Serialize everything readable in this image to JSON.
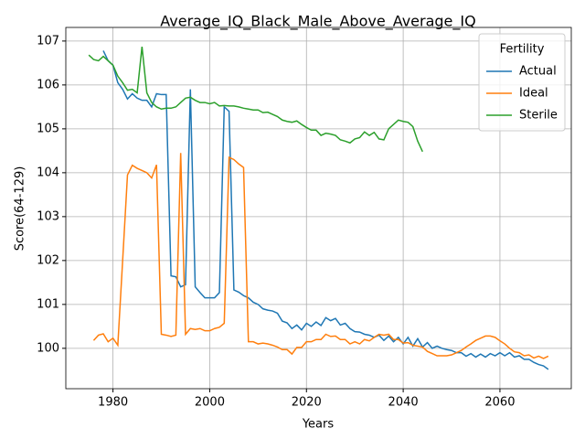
{
  "chart_data": {
    "type": "line",
    "title": "Average_IQ_Black_Male_Above_Average_IQ",
    "x_label": "Years",
    "y_label": "Score(64-129)",
    "x": [
      1975,
      1976,
      1977,
      1978,
      1979,
      1980,
      1981,
      1982,
      1983,
      1984,
      1985,
      1986,
      1987,
      1988,
      1989,
      1990,
      1991,
      1992,
      1993,
      1994,
      1995,
      1996,
      1997,
      1998,
      1999,
      2000,
      2001,
      2002,
      2003,
      2004,
      2005,
      2006,
      2007,
      2008,
      2009,
      2010,
      2011,
      2012,
      2013,
      2014,
      2015,
      2016,
      2017,
      2018,
      2019,
      2020,
      2021,
      2022,
      2023,
      2024,
      2025,
      2026,
      2027,
      2028,
      2029,
      2030,
      2031,
      2032,
      2033,
      2034,
      2035,
      2036,
      2037,
      2038,
      2039,
      2040,
      2041,
      2042,
      2043,
      2044,
      2045,
      2046,
      2047,
      2048,
      2049,
      2050,
      2051,
      2052,
      2053,
      2054,
      2055,
      2056,
      2057,
      2058,
      2059,
      2060,
      2061,
      2062,
      2063,
      2064,
      2065,
      2066,
      2067,
      2068,
      2069,
      2070
    ],
    "series": [
      {
        "name": "Actual",
        "color": "#1f77b4",
        "values": [
          null,
          null,
          null,
          106.78,
          106.55,
          106.45,
          106.05,
          105.9,
          105.68,
          105.8,
          105.7,
          105.65,
          105.65,
          105.5,
          105.8,
          105.78,
          105.78,
          101.65,
          101.63,
          101.4,
          101.45,
          105.9,
          101.4,
          101.27,
          101.15,
          101.15,
          101.15,
          101.27,
          105.5,
          105.4,
          101.33,
          101.28,
          101.2,
          101.15,
          101.05,
          101.0,
          100.9,
          100.87,
          100.85,
          100.8,
          100.62,
          100.58,
          100.45,
          100.53,
          100.42,
          100.57,
          100.5,
          100.6,
          100.52,
          100.7,
          100.63,
          100.68,
          100.53,
          100.57,
          100.45,
          100.38,
          100.37,
          100.32,
          100.3,
          100.25,
          100.3,
          100.18,
          100.28,
          100.15,
          100.25,
          100.1,
          100.25,
          100.05,
          100.22,
          100.03,
          100.13,
          100.0,
          100.05,
          100.0,
          99.97,
          99.95,
          99.9,
          99.9,
          99.82,
          99.88,
          99.8,
          99.87,
          99.8,
          99.88,
          99.83,
          99.9,
          99.83,
          99.9,
          99.8,
          99.83,
          99.75,
          99.75,
          99.68,
          99.63,
          99.6,
          99.52
        ]
      },
      {
        "name": "Ideal",
        "color": "#ff7f0e",
        "values": [
          null,
          100.18,
          100.3,
          100.33,
          100.15,
          100.23,
          100.07,
          102.0,
          103.95,
          104.17,
          104.1,
          104.05,
          104.0,
          103.88,
          104.18,
          100.32,
          100.3,
          100.27,
          100.3,
          104.45,
          100.32,
          100.45,
          100.43,
          100.45,
          100.4,
          100.4,
          100.45,
          100.48,
          100.57,
          104.35,
          104.3,
          104.2,
          104.12,
          100.15,
          100.15,
          100.1,
          100.12,
          100.1,
          100.07,
          100.03,
          99.97,
          99.97,
          99.87,
          100.02,
          100.02,
          100.15,
          100.15,
          100.2,
          100.2,
          100.32,
          100.27,
          100.28,
          100.2,
          100.2,
          100.1,
          100.15,
          100.1,
          100.2,
          100.17,
          100.25,
          100.32,
          100.3,
          100.32,
          100.2,
          100.2,
          100.12,
          100.13,
          100.07,
          100.05,
          100.03,
          99.93,
          99.88,
          99.83,
          99.83,
          99.83,
          99.85,
          99.9,
          99.95,
          100.03,
          100.1,
          100.18,
          100.23,
          100.28,
          100.28,
          100.25,
          100.17,
          100.1,
          100.0,
          99.92,
          99.9,
          99.83,
          99.85,
          99.78,
          99.82,
          99.77,
          99.82
        ]
      },
      {
        "name": "Sterile",
        "color": "#2ca02c",
        "values": [
          106.68,
          106.58,
          106.55,
          106.65,
          106.55,
          106.45,
          106.2,
          106.05,
          105.88,
          105.9,
          105.82,
          106.87,
          105.82,
          105.6,
          105.5,
          105.45,
          105.47,
          105.47,
          105.5,
          105.6,
          105.7,
          105.72,
          105.65,
          105.6,
          105.6,
          105.57,
          105.6,
          105.52,
          105.53,
          105.52,
          105.52,
          105.5,
          105.47,
          105.45,
          105.43,
          105.43,
          105.37,
          105.38,
          105.33,
          105.28,
          105.2,
          105.17,
          105.15,
          105.18,
          105.1,
          105.03,
          104.97,
          104.97,
          104.85,
          104.9,
          104.88,
          104.85,
          104.75,
          104.72,
          104.68,
          104.77,
          104.8,
          104.93,
          104.85,
          104.92,
          104.77,
          104.75,
          105.0,
          105.1,
          105.2,
          105.17,
          105.15,
          105.05,
          104.72,
          104.48,
          null,
          null,
          null,
          null,
          null,
          null,
          null,
          null,
          null,
          null,
          null,
          null,
          null,
          null,
          null,
          null,
          null,
          null,
          null,
          null,
          null,
          null,
          null,
          null,
          null,
          null
        ]
      }
    ],
    "xlim": [
      1970.25,
      2074.75
    ],
    "xticks": [
      1980,
      2000,
      2020,
      2040,
      2060
    ],
    "ylim": [
      99.08,
      107.31
    ],
    "yticks": [
      100,
      101,
      102,
      103,
      104,
      105,
      106,
      107
    ],
    "grid": true,
    "legend_title": "Fertility",
    "legend_position": "upper right"
  }
}
